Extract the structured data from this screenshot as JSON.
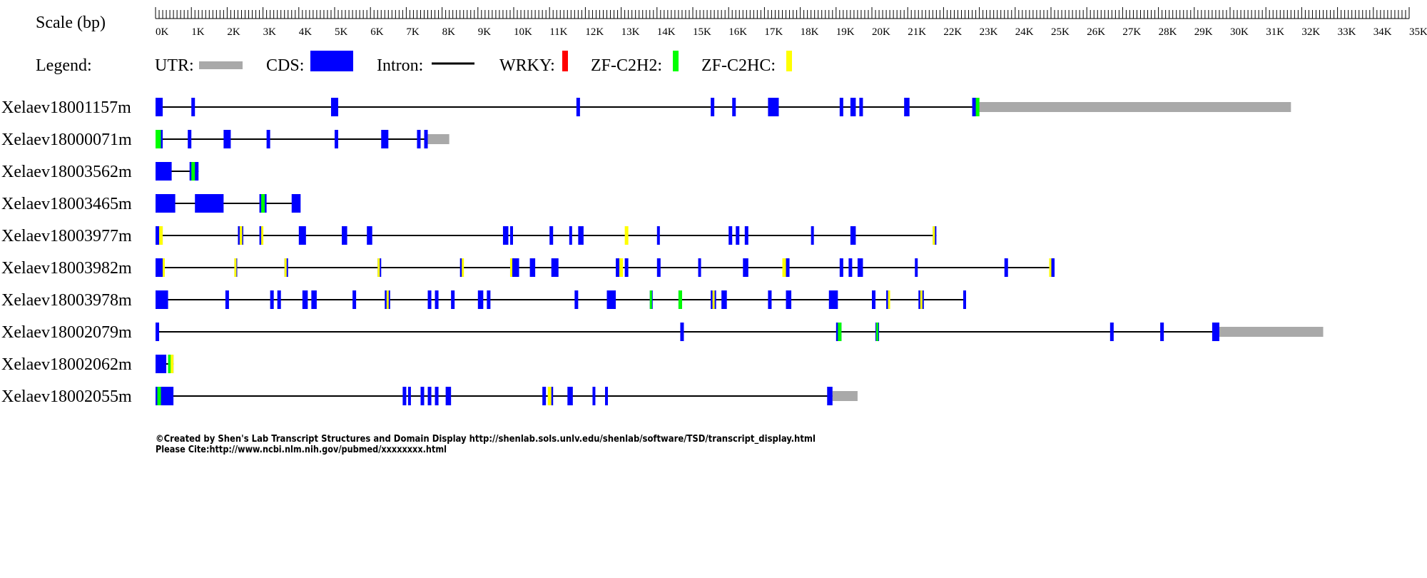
{
  "scale_label": "Scale (bp)",
  "legend": {
    "title": "Legend:",
    "utr_label": "UTR:",
    "cds_label": "CDS:",
    "intron_label": "Intron:",
    "wrky_label": "WRKY:",
    "zf_c2h2_label": "ZF-C2H2:",
    "zf_c2hc_label": "ZF-C2HC:"
  },
  "colors": {
    "utr": "#a9a9a9",
    "cds": "#0000ff",
    "intron": "#000000",
    "wrky": "#ff0000",
    "zf_c2h2": "#00ff00",
    "zf_c2hc": "#ffff00"
  },
  "axis": {
    "max_kb": 35,
    "tick_labels": [
      "0K",
      "1K",
      "2K",
      "3K",
      "4K",
      "5K",
      "6K",
      "7K",
      "8K",
      "9K",
      "10K",
      "11K",
      "12K",
      "13K",
      "14K",
      "15K",
      "16K",
      "17K",
      "18K",
      "19K",
      "20K",
      "21K",
      "22K",
      "23K",
      "24K",
      "25K",
      "26K",
      "27K",
      "28K",
      "29K",
      "30K",
      "31K",
      "32K",
      "33K",
      "34K",
      "35K"
    ]
  },
  "transcripts": [
    {
      "name": "Xelaev18001157m",
      "intron_end_kb": 22.9,
      "cds": [
        [
          0,
          0.2
        ],
        [
          1,
          1.1
        ],
        [
          4.9,
          5.1
        ],
        [
          11.75,
          11.85
        ],
        [
          15.5,
          15.6
        ],
        [
          16.1,
          16.2
        ],
        [
          17.1,
          17.4
        ],
        [
          19.1,
          19.2
        ],
        [
          19.4,
          19.55
        ],
        [
          19.65,
          19.75
        ],
        [
          20.9,
          21.05
        ],
        [
          22.8,
          23.0
        ]
      ],
      "utr": [
        [
          23.0,
          31.7
        ]
      ],
      "domains": [
        {
          "type": "zf_c2h2",
          "range": [
            22.9,
            23.0
          ]
        }
      ]
    },
    {
      "name": "Xelaev18000071m",
      "intron_end_kb": 7.6,
      "cds": [
        [
          0,
          0.2
        ],
        [
          0.9,
          1.0
        ],
        [
          1.9,
          2.1
        ],
        [
          3.1,
          3.2
        ],
        [
          5.0,
          5.1
        ],
        [
          6.3,
          6.5
        ],
        [
          7.3,
          7.4
        ],
        [
          7.5,
          7.6
        ]
      ],
      "utr": [
        [
          7.6,
          8.2
        ]
      ],
      "domains": [
        {
          "type": "zf_c2h2",
          "range": [
            0,
            0.15
          ]
        }
      ]
    },
    {
      "name": "Xelaev18003562m",
      "intron_end_kb": 1.2,
      "cds": [
        [
          0,
          0.45
        ],
        [
          0.95,
          1.2
        ]
      ],
      "utr": [],
      "domains": [
        {
          "type": "zf_c2h2",
          "range": [
            1.0,
            1.1
          ]
        }
      ]
    },
    {
      "name": "Xelaev18003465m",
      "intron_end_kb": 4.0,
      "cds": [
        [
          0,
          0.55
        ],
        [
          1.1,
          1.9
        ],
        [
          2.9,
          3.1
        ],
        [
          3.8,
          4.05
        ]
      ],
      "utr": [],
      "domains": [
        {
          "type": "zf_c2h2",
          "range": [
            2.95,
            3.05
          ]
        }
      ]
    },
    {
      "name": "Xelaev18003977m",
      "intron_end_kb": 21.8,
      "cds": [
        [
          0,
          0.2
        ],
        [
          2.3,
          2.45
        ],
        [
          2.9,
          3.0
        ],
        [
          4.0,
          4.2
        ],
        [
          5.2,
          5.35
        ],
        [
          5.9,
          6.05
        ],
        [
          9.7,
          9.85
        ],
        [
          9.9,
          9.98
        ],
        [
          11.0,
          11.1
        ],
        [
          11.55,
          11.6
        ],
        [
          11.8,
          11.95
        ],
        [
          14.0,
          14.05
        ],
        [
          16.0,
          16.1
        ],
        [
          16.2,
          16.3
        ],
        [
          16.45,
          16.55
        ],
        [
          18.3,
          18.35
        ],
        [
          19.4,
          19.55
        ],
        [
          21.7,
          21.8
        ]
      ],
      "utr": [],
      "domains": [
        {
          "type": "zf_c2hc",
          "range": [
            0.1,
            0.2
          ]
        },
        {
          "type": "zf_c2hc",
          "range": [
            2.35,
            2.42
          ]
        },
        {
          "type": "zf_c2hc",
          "range": [
            2.95,
            3.0
          ]
        },
        {
          "type": "zf_c2hc",
          "range": [
            13.1,
            13.2
          ]
        },
        {
          "type": "zf_c2hc",
          "range": [
            21.7,
            21.75
          ]
        }
      ]
    },
    {
      "name": "Xelaev18003982m",
      "intron_end_kb": 25.1,
      "cds": [
        [
          0,
          0.25
        ],
        [
          2.2,
          2.25
        ],
        [
          3.6,
          3.7
        ],
        [
          6.2,
          6.3
        ],
        [
          8.5,
          8.6
        ],
        [
          9.9,
          10.15
        ],
        [
          10.45,
          10.6
        ],
        [
          11.05,
          11.25
        ],
        [
          12.85,
          12.95
        ],
        [
          13.1,
          13.2
        ],
        [
          14.0,
          14.1
        ],
        [
          15.15,
          15.2
        ],
        [
          16.4,
          16.55
        ],
        [
          17.5,
          17.7
        ],
        [
          19.1,
          19.2
        ],
        [
          19.35,
          19.45
        ],
        [
          19.6,
          19.75
        ],
        [
          21.2,
          21.25
        ],
        [
          23.7,
          23.8
        ],
        [
          24.95,
          25.1
        ]
      ],
      "utr": [],
      "domains": [
        {
          "type": "zf_c2hc",
          "range": [
            0.2,
            0.25
          ]
        },
        {
          "type": "zf_c2hc",
          "range": [
            2.2,
            2.25
          ]
        },
        {
          "type": "zf_c2hc",
          "range": [
            3.6,
            3.65
          ]
        },
        {
          "type": "zf_c2hc",
          "range": [
            6.2,
            6.25
          ]
        },
        {
          "type": "zf_c2hc",
          "range": [
            8.55,
            8.6
          ]
        },
        {
          "type": "zf_c2hc",
          "range": [
            9.9,
            9.95
          ]
        },
        {
          "type": "zf_c2hc",
          "range": [
            12.95,
            13.05
          ]
        },
        {
          "type": "zf_c2hc",
          "range": [
            17.5,
            17.6
          ]
        },
        {
          "type": "zf_c2hc",
          "range": [
            24.95,
            25.0
          ]
        }
      ]
    },
    {
      "name": "Xelaev18003978m",
      "intron_end_kb": 22.6,
      "cds": [
        [
          0,
          0.35
        ],
        [
          1.95,
          2.05
        ],
        [
          3.2,
          3.3
        ],
        [
          3.4,
          3.5
        ],
        [
          4.1,
          4.25
        ],
        [
          4.35,
          4.5
        ],
        [
          5.5,
          5.6
        ],
        [
          6.4,
          6.55
        ],
        [
          7.6,
          7.7
        ],
        [
          7.8,
          7.9
        ],
        [
          8.25,
          8.35
        ],
        [
          9.0,
          9.15
        ],
        [
          9.25,
          9.35
        ],
        [
          11.7,
          11.8
        ],
        [
          12.6,
          12.85
        ],
        [
          13.8,
          13.85
        ],
        [
          14.6,
          14.7
        ],
        [
          15.5,
          15.65
        ],
        [
          15.8,
          15.95
        ],
        [
          17.1,
          17.2
        ],
        [
          17.6,
          17.75
        ],
        [
          18.8,
          19.05
        ],
        [
          20.0,
          20.1
        ],
        [
          20.4,
          20.5
        ],
        [
          21.3,
          21.45
        ],
        [
          22.55,
          22.6
        ]
      ],
      "utr": [],
      "domains": [
        {
          "type": "zf_c2hc",
          "range": [
            6.45,
            6.5
          ]
        },
        {
          "type": "zf_c2h2",
          "range": [
            13.8,
            13.85
          ]
        },
        {
          "type": "zf_c2h2",
          "range": [
            14.6,
            14.7
          ]
        },
        {
          "type": "zf_c2hc",
          "range": [
            15.55,
            15.6
          ]
        },
        {
          "type": "zf_c2hc",
          "range": [
            20.45,
            20.5
          ]
        },
        {
          "type": "zf_c2hc",
          "range": [
            21.35,
            21.4
          ]
        }
      ]
    },
    {
      "name": "Xelaev18002079m",
      "intron_end_kb": 29.7,
      "cds": [
        [
          0,
          0.1
        ],
        [
          14.65,
          14.75
        ],
        [
          19.0,
          19.15
        ],
        [
          20.1,
          20.2
        ],
        [
          26.65,
          26.75
        ],
        [
          28.05,
          28.15
        ],
        [
          29.5,
          29.7
        ]
      ],
      "utr": [
        [
          29.7,
          32.6
        ]
      ],
      "domains": [
        {
          "type": "zf_c2h2",
          "range": [
            19.05,
            19.15
          ]
        },
        {
          "type": "zf_c2h2",
          "range": [
            20.12,
            20.18
          ]
        }
      ]
    },
    {
      "name": "Xelaev18002062m",
      "intron_end_kb": 0.5,
      "cds": [
        [
          0,
          0.3
        ],
        [
          0.35,
          0.5
        ]
      ],
      "utr": [],
      "domains": [
        {
          "type": "zf_c2h2",
          "range": [
            0.35,
            0.42
          ]
        },
        {
          "type": "zf_c2hc",
          "range": [
            0.42,
            0.5
          ]
        }
      ]
    },
    {
      "name": "Xelaev18002055m",
      "intron_end_kb": 18.9,
      "cds": [
        [
          0,
          0.5
        ],
        [
          6.9,
          7.0
        ],
        [
          7.05,
          7.1
        ],
        [
          7.4,
          7.5
        ],
        [
          7.6,
          7.7
        ],
        [
          7.8,
          7.9
        ],
        [
          8.1,
          8.25
        ],
        [
          10.8,
          10.9
        ],
        [
          11.0,
          11.1
        ],
        [
          11.5,
          11.65
        ],
        [
          12.2,
          12.25
        ],
        [
          12.55,
          12.6
        ],
        [
          18.75,
          18.9
        ]
      ],
      "utr": [
        [
          18.9,
          19.6
        ]
      ],
      "domains": [
        {
          "type": "zf_c2h2",
          "range": [
            0.05,
            0.15
          ]
        },
        {
          "type": "zf_c2hc",
          "range": [
            10.95,
            11.05
          ]
        }
      ]
    }
  ],
  "footer": {
    "line1": "©Created by Shen's Lab Transcript Structures and Domain Display http://shenlab.sols.unlv.edu/shenlab/software/TSD/transcript_display.html",
    "line2": "Please Cite:http://www.ncbi.nlm.nih.gov/pubmed/xxxxxxxx.html"
  }
}
